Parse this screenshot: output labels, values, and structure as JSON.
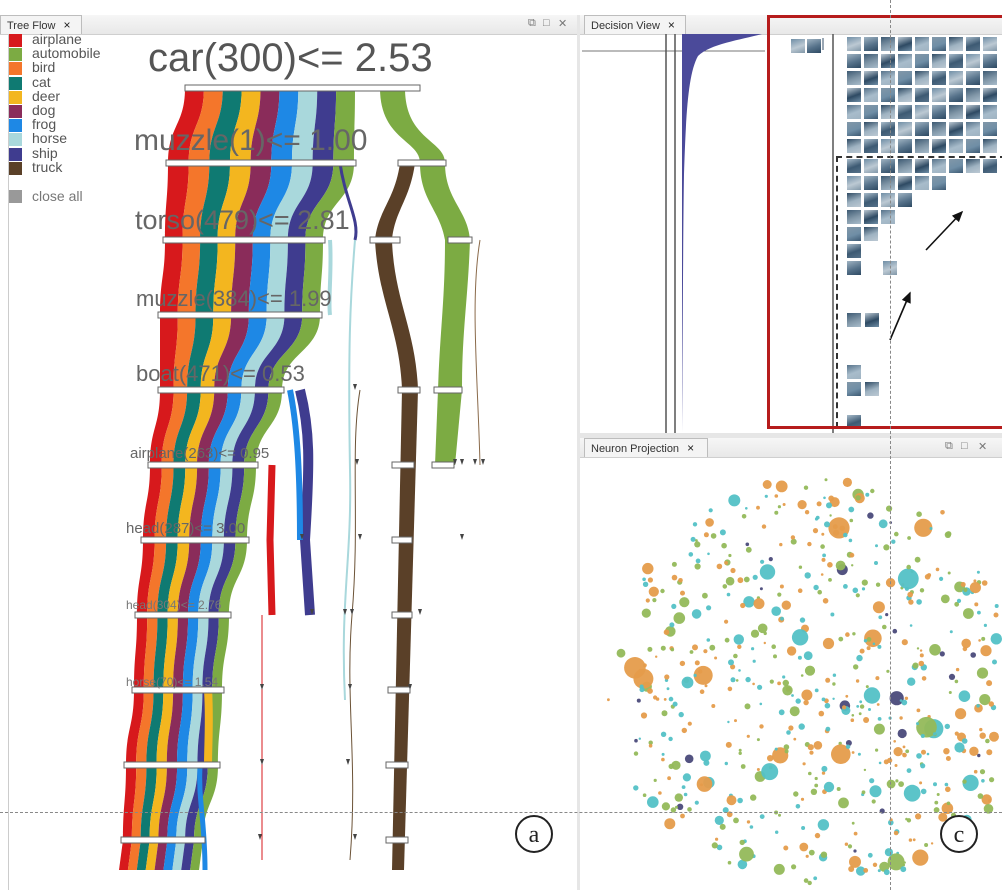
{
  "tree_flow": {
    "tab_title": "Tree Flow",
    "close_glyph": "×",
    "legend": [
      {
        "label": "airplane",
        "color": "#d7191c"
      },
      {
        "label": "automobile",
        "color": "#7cab43"
      },
      {
        "label": "bird",
        "color": "#f4762b"
      },
      {
        "label": "cat",
        "color": "#0f7a72"
      },
      {
        "label": "deer",
        "color": "#f3b61f"
      },
      {
        "label": "dog",
        "color": "#8a2c5a"
      },
      {
        "label": "frog",
        "color": "#1e88e5"
      },
      {
        "label": "horse",
        "color": "#a9d8dc"
      },
      {
        "label": "ship",
        "color": "#3f3c8f"
      },
      {
        "label": "truck",
        "color": "#5a4028"
      }
    ],
    "close_all": "close all",
    "nodes": [
      {
        "label": "car(300)<= 2.53"
      },
      {
        "label": "muzzle(1)<= 1.00"
      },
      {
        "label": "torso(479)<= 2.81"
      },
      {
        "label": "muzzle(384)<= 1.99"
      },
      {
        "label": "boat(471)<= 0.53"
      },
      {
        "label": "airplane(263)<= 0.95"
      },
      {
        "label": "head(287)<= 3.00"
      },
      {
        "label": "head(304)<= 2.76"
      },
      {
        "label": "horse(70)<= 1.54"
      }
    ],
    "annotation": "a"
  },
  "decision_view": {
    "tab_title": "Decision View",
    "close_glyph": "×"
  },
  "neuron_projection": {
    "tab_title": "Neuron Projection",
    "close_glyph": "×",
    "annotation": "c"
  },
  "colors": {
    "dot_orange": "#e59c4b",
    "dot_green": "#93b95a",
    "dot_cyan": "#53c1c6",
    "histogram": "#4b4a9a",
    "highlight": "#b61c1c"
  }
}
